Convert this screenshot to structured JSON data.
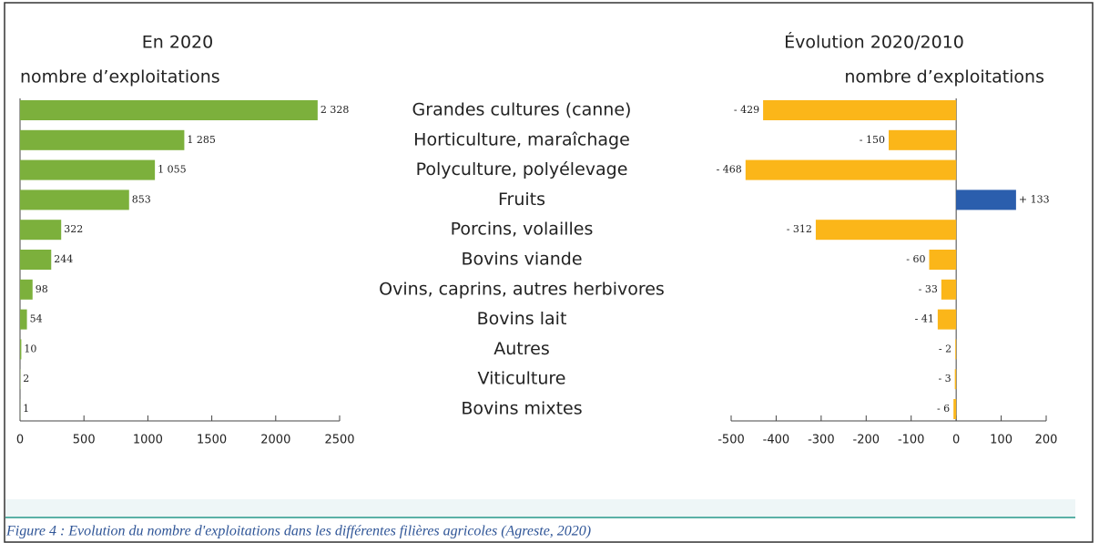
{
  "chart_data": [
    {
      "type": "hbar",
      "title": "En 2020",
      "subtitle": "nombre d’exploitations",
      "categories": [
        "Grandes cultures (canne)",
        "Horticulture, maraîchage",
        "Polyculture, polyélevage",
        "Fruits",
        "Porcins, volailles",
        "Bovins viande",
        "Ovins, caprins, autres herbivores",
        "Bovins lait",
        "Autres",
        "Viticulture",
        "Bovins mixtes"
      ],
      "values": [
        2328,
        1285,
        1055,
        853,
        322,
        244,
        98,
        54,
        10,
        2,
        1
      ],
      "value_labels": [
        "2 328",
        "1 285",
        "1 055",
        "853",
        "322",
        "244",
        "98",
        "54",
        "10",
        "2",
        "1"
      ],
      "color": "#7cb03c",
      "xlim": [
        0,
        2500
      ],
      "xticks": [
        0,
        500,
        1000,
        1500,
        2000,
        2500
      ]
    },
    {
      "type": "hbar",
      "title": "Évolution 2020/2010",
      "subtitle": "nombre d’exploitations",
      "values": [
        -429,
        -150,
        -468,
        133,
        -312,
        -60,
        -33,
        -41,
        -2,
        -3,
        -6
      ],
      "value_labels": [
        "- 429",
        "- 150",
        "- 468",
        "+ 133",
        "- 312",
        "- 60",
        "- 33",
        "- 41",
        "- 2",
        "- 3",
        "- 6"
      ],
      "negative_color": "#fbb619",
      "positive_color": "#2b5ead",
      "xlim": [
        -500,
        200
      ],
      "xticks": [
        -500,
        -400,
        -300,
        -200,
        -100,
        0,
        100,
        200
      ]
    }
  ],
  "caption": "Figure 4 : Evolution du nombre d'exploitations dans les différentes filières agricoles (Agreste, 2020)"
}
